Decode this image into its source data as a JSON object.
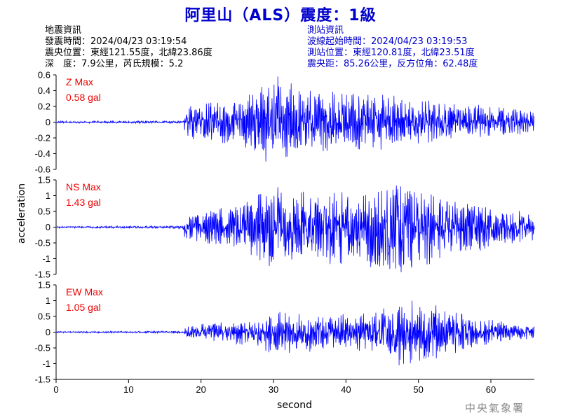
{
  "title": "阿里山（ALS）震度：1級",
  "quake_info": {
    "heading": "地震資訊",
    "time": "發震時間：2024/04/23 03:19:54",
    "location": "震央位置：東經121.55度，北緯23.86度",
    "depth_mag": "深　度：7.9公里，芮氏規模：5.2"
  },
  "station_info": {
    "heading": "測站資訊",
    "wave_start": "波線起始時間：2024/04/23 03:19:53",
    "location": "測站位置：東經120.81度，北緯23.51度",
    "distance": "震央距：85.26公里，反方位角：62.48度"
  },
  "agency": "中央氣象署",
  "colors": {
    "title": "#0000cc",
    "trace": "#0000ff",
    "max_label": "#ee0000"
  },
  "chart_data": {
    "type": "line",
    "xlabel": "second",
    "ylabel": "acceleration",
    "xlim": [
      0,
      66
    ],
    "xticks": [
      0,
      10,
      20,
      30,
      40,
      50,
      60
    ],
    "panels": [
      {
        "name": "Z Max",
        "max_text": "0.58 gal",
        "ylim": [
          -0.6,
          0.6
        ],
        "yticks": [
          -0.6,
          -0.4,
          -0.2,
          0,
          0.2,
          0.4,
          0.6
        ],
        "ytick_labels": [
          "-0.6",
          "-0.4",
          "-0.2",
          "0",
          "0.2",
          "0.4",
          "0.6"
        ],
        "peak": 0.58,
        "onset": 17.8,
        "seed": 11,
        "envelope": [
          [
            0,
            0.012
          ],
          [
            17.5,
            0.015
          ],
          [
            17.8,
            0.18
          ],
          [
            20,
            0.22
          ],
          [
            26,
            0.28
          ],
          [
            28,
            0.36
          ],
          [
            30,
            0.5
          ],
          [
            32,
            0.42
          ],
          [
            34,
            0.34
          ],
          [
            38,
            0.32
          ],
          [
            44,
            0.3
          ],
          [
            50,
            0.26
          ],
          [
            56,
            0.2
          ],
          [
            62,
            0.15
          ],
          [
            66,
            0.12
          ]
        ]
      },
      {
        "name": "NS Max",
        "max_text": "1.43 gal",
        "ylim": [
          -1.5,
          1.5
        ],
        "yticks": [
          -1.5,
          -1,
          -0.5,
          0,
          0.5,
          1,
          1.5
        ],
        "ytick_labels": [
          "-1.5",
          "-1",
          "-0.5",
          "0",
          "0.5",
          "1",
          "1.5"
        ],
        "peak": 1.43,
        "onset": 17.8,
        "seed": 23,
        "envelope": [
          [
            0,
            0.02
          ],
          [
            17.5,
            0.03
          ],
          [
            17.8,
            0.3
          ],
          [
            22,
            0.4
          ],
          [
            26,
            0.55
          ],
          [
            28,
            0.8
          ],
          [
            30,
            0.95
          ],
          [
            34,
            0.8
          ],
          [
            38,
            0.85
          ],
          [
            42,
            0.75
          ],
          [
            46,
            1.1
          ],
          [
            48,
            1.0
          ],
          [
            52,
            0.8
          ],
          [
            56,
            0.6
          ],
          [
            60,
            0.45
          ],
          [
            66,
            0.3
          ]
        ]
      },
      {
        "name": "EW Max",
        "max_text": "1.05 gal",
        "ylim": [
          -1.5,
          1.5
        ],
        "yticks": [
          -1.5,
          -1,
          -0.5,
          0,
          0.5,
          1,
          1.5
        ],
        "ytick_labels": [
          "-1.5",
          "-1",
          "-0.5",
          "0",
          "0.5",
          "1",
          "1.5"
        ],
        "peak": 1.05,
        "onset": 17.8,
        "seed": 37,
        "envelope": [
          [
            0,
            0.02
          ],
          [
            17.5,
            0.03
          ],
          [
            17.8,
            0.15
          ],
          [
            22,
            0.25
          ],
          [
            26,
            0.35
          ],
          [
            30,
            0.55
          ],
          [
            34,
            0.5
          ],
          [
            40,
            0.45
          ],
          [
            44,
            0.5
          ],
          [
            47,
            0.85
          ],
          [
            50,
            0.8
          ],
          [
            54,
            0.6
          ],
          [
            58,
            0.4
          ],
          [
            62,
            0.25
          ],
          [
            66,
            0.18
          ]
        ]
      }
    ]
  }
}
